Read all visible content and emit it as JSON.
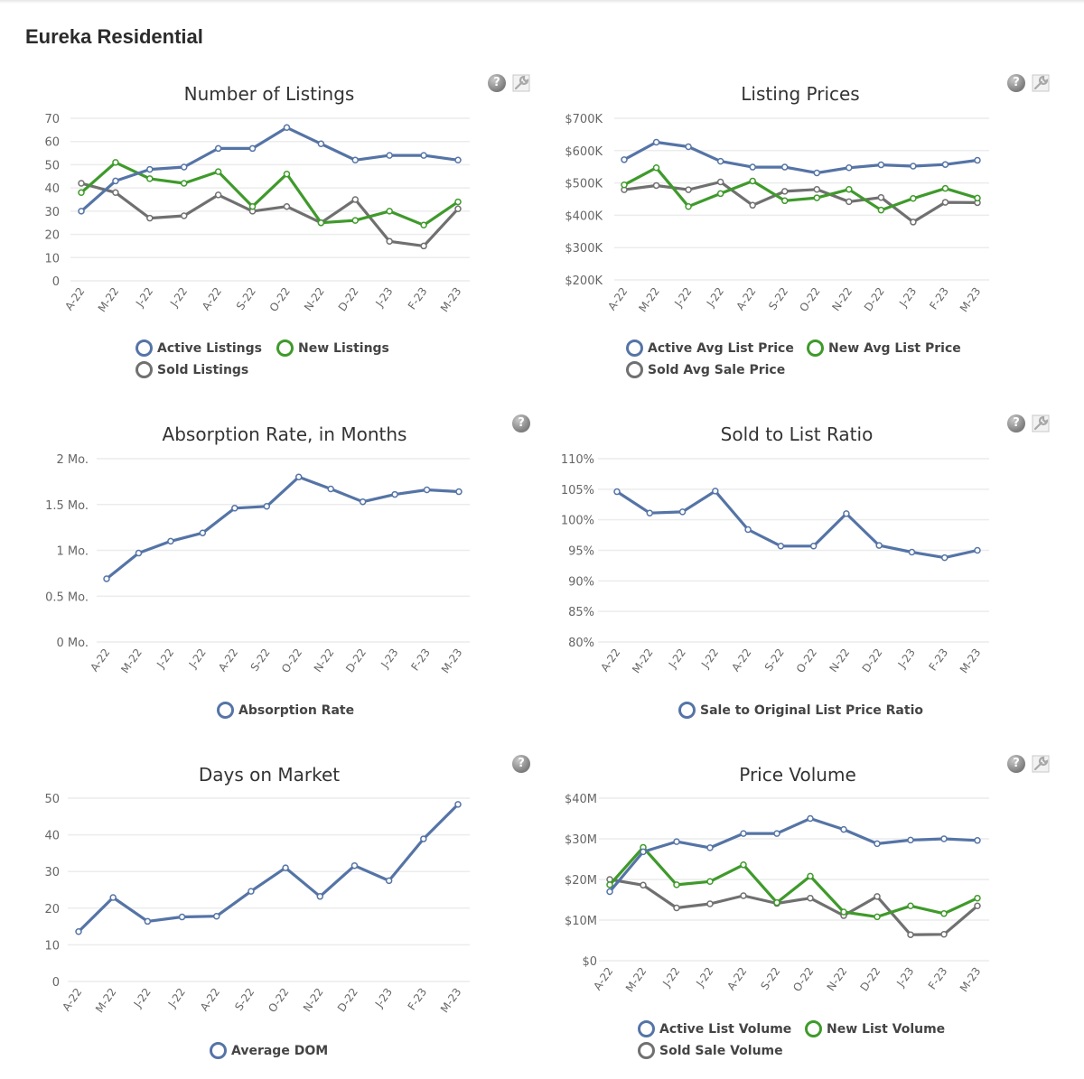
{
  "page": {
    "title": "Eureka Residential"
  },
  "colors": {
    "active": "#5574a6",
    "new": "#3f9a2b",
    "sold": "#707070",
    "grid": "#ececec"
  },
  "chart_data": [
    {
      "id": "listings",
      "type": "line",
      "title": "Number of Listings",
      "categories": [
        "A-22",
        "M-22",
        "J-22",
        "J-22",
        "A-22",
        "S-22",
        "O-22",
        "N-22",
        "D-22",
        "J-23",
        "F-23",
        "M-23"
      ],
      "ylim": [
        0,
        70
      ],
      "yticks": [
        0,
        10,
        20,
        30,
        40,
        50,
        60,
        70
      ],
      "ytick_labels": [
        "0",
        "10",
        "20",
        "30",
        "40",
        "50",
        "60",
        "70"
      ],
      "grid": true,
      "legend_position": "bottom",
      "series": [
        {
          "name": "Active Listings",
          "color": "#5574a6",
          "values": [
            30,
            43,
            48,
            49,
            57,
            57,
            66,
            59,
            52,
            54,
            54,
            52
          ]
        },
        {
          "name": "New Listings",
          "color": "#3f9a2b",
          "values": [
            38,
            51,
            44,
            42,
            47,
            32,
            46,
            25,
            26,
            30,
            24,
            34
          ]
        },
        {
          "name": "Sold Listings",
          "color": "#707070",
          "values": [
            42,
            38,
            27,
            28,
            37,
            30,
            32,
            25,
            35,
            17,
            15,
            31
          ]
        }
      ],
      "icons": [
        "help-icon",
        "wrench-icon"
      ]
    },
    {
      "id": "prices",
      "type": "line",
      "title": "Listing Prices",
      "categories": [
        "A-22",
        "M-22",
        "J-22",
        "J-22",
        "A-22",
        "S-22",
        "O-22",
        "N-22",
        "D-22",
        "J-23",
        "F-23",
        "M-23"
      ],
      "ylim": [
        200000,
        700000
      ],
      "yticks": [
        200000,
        300000,
        400000,
        500000,
        600000,
        700000
      ],
      "ytick_labels": [
        "$200K",
        "$300K",
        "$400K",
        "$500K",
        "$600K",
        "$700K"
      ],
      "grid": true,
      "legend_position": "bottom",
      "series": [
        {
          "name": "Active Avg List Price",
          "color": "#5574a6",
          "values": [
            572000,
            626000,
            612000,
            567000,
            549000,
            549000,
            531000,
            547000,
            556000,
            552000,
            557000,
            570000
          ]
        },
        {
          "name": "New Avg List Price",
          "color": "#3f9a2b",
          "values": [
            494000,
            547000,
            427000,
            467000,
            506000,
            445000,
            454000,
            480000,
            416000,
            452000,
            483000,
            453000
          ]
        },
        {
          "name": "Sold Avg Sale Price",
          "color": "#707070",
          "values": [
            479000,
            492000,
            479000,
            503000,
            431000,
            474000,
            480000,
            442000,
            455000,
            379000,
            440000,
            439000
          ]
        }
      ],
      "icons": [
        "help-icon",
        "wrench-icon"
      ]
    },
    {
      "id": "absorption",
      "type": "line",
      "title": "Absorption Rate, in Months",
      "categories": [
        "A-22",
        "M-22",
        "J-22",
        "J-22",
        "A-22",
        "S-22",
        "O-22",
        "N-22",
        "D-22",
        "J-23",
        "F-23",
        "M-23"
      ],
      "ylim": [
        0,
        2
      ],
      "yticks": [
        0,
        0.5,
        1,
        1.5,
        2
      ],
      "ytick_labels": [
        "0 Mo.",
        "0.5 Mo.",
        "1 Mo.",
        "1.5 Mo.",
        "2 Mo."
      ],
      "grid": true,
      "legend_position": "bottom",
      "series": [
        {
          "name": "Absorption Rate",
          "color": "#5574a6",
          "values": [
            0.69,
            0.97,
            1.1,
            1.19,
            1.46,
            1.48,
            1.8,
            1.67,
            1.53,
            1.61,
            1.66,
            1.64
          ]
        }
      ],
      "icons": [
        "help-icon"
      ]
    },
    {
      "id": "ratio",
      "type": "line",
      "title": "Sold to List Ratio",
      "categories": [
        "A-22",
        "M-22",
        "J-22",
        "J-22",
        "A-22",
        "S-22",
        "O-22",
        "N-22",
        "D-22",
        "J-23",
        "F-23",
        "M-23"
      ],
      "ylim": [
        80,
        110
      ],
      "yticks": [
        80,
        85,
        90,
        95,
        100,
        105,
        110
      ],
      "ytick_labels": [
        "80%",
        "85%",
        "90%",
        "95%",
        "100%",
        "105%",
        "110%"
      ],
      "grid": true,
      "legend_position": "bottom",
      "series": [
        {
          "name": "Sale to Original List Price Ratio",
          "color": "#5574a6",
          "values": [
            104.6,
            101.1,
            101.3,
            104.7,
            98.4,
            95.7,
            95.7,
            101.0,
            95.8,
            94.7,
            93.8,
            95.0
          ]
        }
      ],
      "icons": [
        "help-icon",
        "wrench-icon"
      ]
    },
    {
      "id": "dom",
      "type": "line",
      "title": "Days on Market",
      "categories": [
        "A-22",
        "M-22",
        "J-22",
        "J-22",
        "A-22",
        "S-22",
        "O-22",
        "N-22",
        "D-22",
        "J-23",
        "F-23",
        "M-23"
      ],
      "ylim": [
        0,
        50
      ],
      "yticks": [
        0,
        10,
        20,
        30,
        40,
        50
      ],
      "ytick_labels": [
        "0",
        "10",
        "20",
        "30",
        "40",
        "50"
      ],
      "grid": true,
      "legend_position": "bottom",
      "series": [
        {
          "name": "Average DOM",
          "color": "#5574a6",
          "values": [
            13.6,
            22.9,
            16.4,
            17.6,
            17.8,
            24.6,
            31.0,
            23.2,
            31.6,
            27.5,
            38.9,
            48.3
          ]
        }
      ],
      "icons": [
        "help-icon"
      ]
    },
    {
      "id": "volume",
      "type": "line",
      "title": "Price Volume",
      "categories": [
        "A-22",
        "M-22",
        "J-22",
        "J-22",
        "A-22",
        "S-22",
        "O-22",
        "N-22",
        "D-22",
        "J-23",
        "F-23",
        "M-23"
      ],
      "ylim": [
        0,
        40000000
      ],
      "yticks": [
        0,
        10000000,
        20000000,
        30000000,
        40000000
      ],
      "ytick_labels": [
        "$0",
        "$10M",
        "$20M",
        "$30M",
        "$40M"
      ],
      "grid": true,
      "legend_position": "bottom",
      "series": [
        {
          "name": "Active List Volume",
          "color": "#5574a6",
          "values": [
            17000000,
            26800000,
            29300000,
            27800000,
            31300000,
            31300000,
            35000000,
            32300000,
            28800000,
            29700000,
            30000000,
            29600000
          ]
        },
        {
          "name": "New List Volume",
          "color": "#3f9a2b",
          "values": [
            18700000,
            27900000,
            18700000,
            19500000,
            23600000,
            14300000,
            20800000,
            12000000,
            10800000,
            13500000,
            11600000,
            15400000
          ]
        },
        {
          "name": "Sold Sale Volume",
          "color": "#707070",
          "values": [
            20000000,
            18600000,
            13000000,
            14000000,
            16000000,
            14100000,
            15400000,
            11100000,
            15800000,
            6400000,
            6500000,
            13500000
          ]
        }
      ],
      "icons": [
        "help-icon",
        "wrench-icon"
      ]
    }
  ]
}
